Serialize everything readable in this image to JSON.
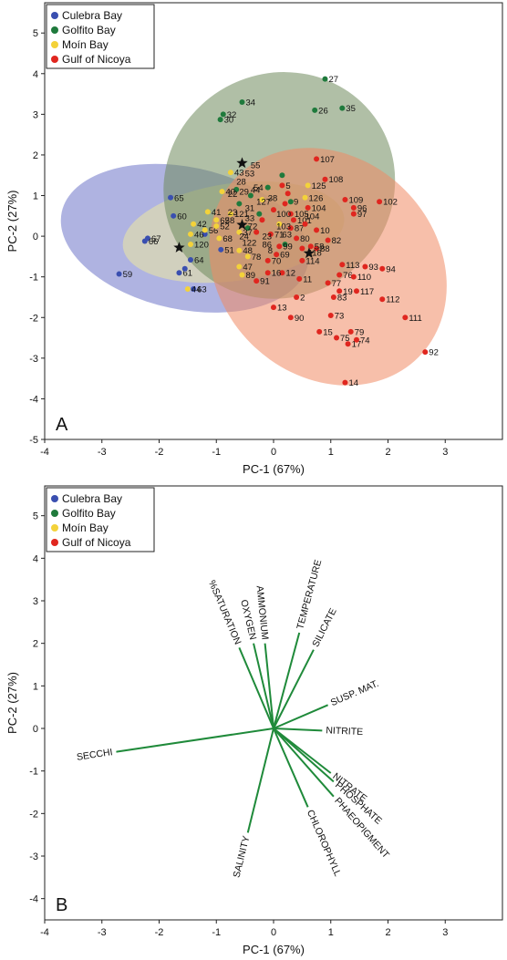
{
  "colors": {
    "culebra": "#3a4fb0",
    "golfito": "#1f7a3c",
    "moin": "#f3d23a",
    "nicoya": "#e0261f",
    "ellipse_culebra": "#6d74c9",
    "ellipse_golfito": "#6f8a5c",
    "ellipse_moin": "#ece7a3",
    "ellipse_nicoya": "#f08a64",
    "vector": "#1f8a3a"
  },
  "legend": [
    {
      "key": "culebra",
      "label": "Culebra Bay"
    },
    {
      "key": "golfito",
      "label": "Golfito Bay"
    },
    {
      "key": "moin",
      "label": "Moín Bay"
    },
    {
      "key": "nicoya",
      "label": "Gulf of Nicoya"
    }
  ],
  "chart_data": [
    {
      "type": "scatter",
      "panel": "A",
      "xlabel": "PC-1 (67%)",
      "ylabel": "PC-2 (27%)",
      "xlim": [
        -4,
        4
      ],
      "ylim": [
        -5,
        5.7
      ],
      "xticks": [
        -4,
        -3,
        -2,
        -1,
        0,
        1,
        2,
        3
      ],
      "yticks": [
        -5,
        -4,
        -3,
        -2,
        -1,
        0,
        1,
        2,
        3,
        4,
        5
      ],
      "ellipses": [
        {
          "key": "culebra",
          "cx": -1.55,
          "cy": -0.05,
          "rx": 2.2,
          "ry": 1.75,
          "angle": -12
        },
        {
          "key": "moin",
          "cx": -0.7,
          "cy": 0.1,
          "rx": 1.95,
          "ry": 1.2,
          "angle": 8
        },
        {
          "key": "golfito",
          "cx": 0.1,
          "cy": 1.25,
          "rx": 2.05,
          "ry": 2.75,
          "angle": 32
        },
        {
          "key": "nicoya",
          "cx": 0.95,
          "cy": -0.75,
          "rx": 1.9,
          "ry": 3.15,
          "angle": 45
        }
      ],
      "centroids": [
        {
          "x": -1.65,
          "y": -0.28
        },
        {
          "x": -0.55,
          "y": 1.8
        },
        {
          "x": -0.55,
          "y": 0.28
        },
        {
          "x": 0.62,
          "y": -0.42
        }
      ],
      "series": [
        {
          "key": "culebra",
          "name": "Culebra Bay",
          "points": [
            {
              "x": -1.8,
              "y": 0.95,
              "label": "65"
            },
            {
              "x": -2.2,
              "y": -0.05,
              "label": "67"
            },
            {
              "x": -2.25,
              "y": -0.12,
              "label": "66"
            },
            {
              "x": -1.75,
              "y": 0.5,
              "label": "60"
            },
            {
              "x": -2.7,
              "y": -0.93,
              "label": "59"
            },
            {
              "x": -1.65,
              "y": -0.9,
              "label": "61"
            },
            {
              "x": -1.45,
              "y": -0.58,
              "label": "64"
            },
            {
              "x": -1.55,
              "y": -0.8,
              "label": ""
            },
            {
              "x": -1.4,
              "y": -1.3,
              "label": "63"
            },
            {
              "x": -0.92,
              "y": -0.33,
              "label": "51"
            },
            {
              "x": -1.2,
              "y": 0.05,
              "label": ""
            }
          ]
        },
        {
          "key": "golfito",
          "name": "Golfito Bay",
          "points": [
            {
              "x": -0.55,
              "y": 3.3,
              "label": "34"
            },
            {
              "x": -0.88,
              "y": 3.0,
              "label": "32"
            },
            {
              "x": -0.93,
              "y": 2.87,
              "label": "30"
            },
            {
              "x": 0.9,
              "y": 3.87,
              "label": "27"
            },
            {
              "x": 1.2,
              "y": 3.15,
              "label": "35"
            },
            {
              "x": 0.72,
              "y": 3.1,
              "label": "26"
            },
            {
              "x": -0.65,
              "y": 1.15,
              "label": ""
            },
            {
              "x": -0.4,
              "y": 1.0,
              "label": ""
            },
            {
              "x": 0.15,
              "y": 1.5,
              "label": ""
            },
            {
              "x": -0.25,
              "y": 0.55,
              "label": ""
            },
            {
              "x": -0.45,
              "y": 0.2,
              "label": ""
            },
            {
              "x": 0.3,
              "y": 0.85,
              "label": ""
            },
            {
              "x": -0.1,
              "y": 1.2,
              "label": ""
            },
            {
              "x": -0.6,
              "y": 0.8,
              "label": ""
            },
            {
              "x": 0.2,
              "y": -0.2,
              "label": ""
            }
          ]
        },
        {
          "key": "moin",
          "name": "Moín Bay",
          "points": [
            {
              "x": -1.15,
              "y": 0.6,
              "label": "41"
            },
            {
              "x": -1.4,
              "y": 0.3,
              "label": "42"
            },
            {
              "x": -1.45,
              "y": 0.05,
              "label": "46"
            },
            {
              "x": -1.2,
              "y": 0.15,
              "label": "56"
            },
            {
              "x": -1.45,
              "y": -0.2,
              "label": "120"
            },
            {
              "x": -1.5,
              "y": -1.3,
              "label": "44"
            },
            {
              "x": -0.9,
              "y": 1.1,
              "label": "40"
            },
            {
              "x": -0.75,
              "y": 1.57,
              "label": "43"
            },
            {
              "x": -1.0,
              "y": 0.25,
              "label": "52"
            },
            {
              "x": -1.0,
              "y": 0.4,
              "label": "62"
            },
            {
              "x": -0.6,
              "y": -0.35,
              "label": "48"
            },
            {
              "x": -0.6,
              "y": -0.75,
              "label": "47"
            },
            {
              "x": -0.55,
              "y": -0.95,
              "label": "89"
            },
            {
              "x": -0.95,
              "y": -0.05,
              "label": "68"
            },
            {
              "x": -0.75,
              "y": 0.55,
              "label": "121"
            },
            {
              "x": -0.6,
              "y": 0.1,
              "label": "37"
            },
            {
              "x": -0.45,
              "y": -0.5,
              "label": "78"
            },
            {
              "x": 0.55,
              "y": 0.95,
              "label": "126"
            },
            {
              "x": 0.6,
              "y": 1.25,
              "label": "125"
            },
            {
              "x": -0.2,
              "y": 0.9,
              "label": ""
            },
            {
              "x": 0.1,
              "y": 0.3,
              "label": ""
            }
          ]
        },
        {
          "key": "nicoya",
          "name": "Gulf of Nicoya",
          "points": [
            {
              "x": 0.75,
              "y": 1.9,
              "label": "107"
            },
            {
              "x": 0.9,
              "y": 1.4,
              "label": "108"
            },
            {
              "x": 1.25,
              "y": 0.9,
              "label": "109"
            },
            {
              "x": 1.85,
              "y": 0.85,
              "label": "102"
            },
            {
              "x": 1.4,
              "y": 0.7,
              "label": "96"
            },
            {
              "x": 1.4,
              "y": 0.55,
              "label": "97"
            },
            {
              "x": 0.6,
              "y": 0.7,
              "label": "104"
            },
            {
              "x": 0.3,
              "y": 0.55,
              "label": "105"
            },
            {
              "x": 0.15,
              "y": 1.25,
              "label": "5"
            },
            {
              "x": 0.3,
              "y": 0.2,
              "label": "87"
            },
            {
              "x": 0.75,
              "y": 0.15,
              "label": "10"
            },
            {
              "x": 0.95,
              "y": -0.1,
              "label": "82"
            },
            {
              "x": 0.75,
              "y": -0.3,
              "label": "88"
            },
            {
              "x": 0.65,
              "y": -0.25,
              "label": "58"
            },
            {
              "x": 1.15,
              "y": -0.95,
              "label": "76"
            },
            {
              "x": 1.2,
              "y": -0.7,
              "label": "113"
            },
            {
              "x": 1.6,
              "y": -0.75,
              "label": "93"
            },
            {
              "x": 1.9,
              "y": -0.8,
              "label": "94"
            },
            {
              "x": 1.4,
              "y": -1.0,
              "label": "110"
            },
            {
              "x": 1.15,
              "y": -1.35,
              "label": "19"
            },
            {
              "x": 1.45,
              "y": -1.35,
              "label": "117"
            },
            {
              "x": 1.9,
              "y": -1.55,
              "label": "112"
            },
            {
              "x": 0.95,
              "y": -1.15,
              "label": "77"
            },
            {
              "x": 1.05,
              "y": -1.5,
              "label": "83"
            },
            {
              "x": 1.0,
              "y": -1.95,
              "label": "73"
            },
            {
              "x": 0.8,
              "y": -2.35,
              "label": "15"
            },
            {
              "x": 1.1,
              "y": -2.5,
              "label": "75"
            },
            {
              "x": 1.3,
              "y": -2.65,
              "label": "17"
            },
            {
              "x": 1.35,
              "y": -2.35,
              "label": "79"
            },
            {
              "x": 1.45,
              "y": -2.55,
              "label": "74"
            },
            {
              "x": 2.3,
              "y": -2.0,
              "label": "111"
            },
            {
              "x": 2.65,
              "y": -2.85,
              "label": "92"
            },
            {
              "x": 1.25,
              "y": -3.6,
              "label": "14"
            },
            {
              "x": 0.4,
              "y": -1.5,
              "label": "2"
            },
            {
              "x": 0.3,
              "y": -2.0,
              "label": "90"
            },
            {
              "x": 0.0,
              "y": -1.75,
              "label": "13"
            },
            {
              "x": 0.45,
              "y": -1.05,
              "label": "11"
            },
            {
              "x": 0.5,
              "y": -0.6,
              "label": "114"
            },
            {
              "x": 0.15,
              "y": -0.9,
              "label": "12"
            },
            {
              "x": -0.1,
              "y": -0.9,
              "label": "16"
            },
            {
              "x": 0.05,
              "y": -0.45,
              "label": "69"
            },
            {
              "x": -0.1,
              "y": -0.6,
              "label": "70"
            },
            {
              "x": 0.1,
              "y": -0.25,
              "label": "99"
            },
            {
              "x": -0.05,
              "y": 0.05,
              "label": "71"
            },
            {
              "x": 0.4,
              "y": -0.05,
              "label": "80"
            },
            {
              "x": 0.5,
              "y": -0.3,
              "label": ""
            },
            {
              "x": 0.35,
              "y": 0.4,
              "label": "101"
            },
            {
              "x": 0.55,
              "y": 0.3,
              "label": ""
            },
            {
              "x": 0.2,
              "y": 0.8,
              "label": ""
            },
            {
              "x": 0.25,
              "y": 1.05,
              "label": ""
            },
            {
              "x": -0.3,
              "y": -1.1,
              "label": "91"
            },
            {
              "x": -0.3,
              "y": 0.1,
              "label": ""
            },
            {
              "x": -0.2,
              "y": 0.4,
              "label": ""
            },
            {
              "x": 0.0,
              "y": 0.65,
              "label": ""
            }
          ]
        }
      ],
      "extra_labels": [
        {
          "x": -0.5,
          "y": 1.55,
          "text": "53"
        },
        {
          "x": -0.4,
          "y": 1.75,
          "text": "55"
        },
        {
          "x": -0.65,
          "y": 1.35,
          "text": "28"
        },
        {
          "x": -0.6,
          "y": 1.1,
          "text": "29"
        },
        {
          "x": -0.4,
          "y": 1.15,
          "text": "44"
        },
        {
          "x": -0.35,
          "y": 1.2,
          "text": "54"
        },
        {
          "x": -0.8,
          "y": 1.05,
          "text": "22"
        },
        {
          "x": -0.1,
          "y": 0.95,
          "text": "38"
        },
        {
          "x": -0.3,
          "y": 0.85,
          "text": "127"
        },
        {
          "x": -0.5,
          "y": 0.7,
          "text": "31"
        },
        {
          "x": -0.8,
          "y": 0.6,
          "text": "23"
        },
        {
          "x": -0.85,
          "y": 0.4,
          "text": "58"
        },
        {
          "x": -0.5,
          "y": 0.45,
          "text": "33"
        },
        {
          "x": -0.45,
          "y": 0.25,
          "text": "72"
        },
        {
          "x": -0.6,
          "y": 0.0,
          "text": "24"
        },
        {
          "x": -0.2,
          "y": 0.0,
          "text": "23"
        },
        {
          "x": -0.55,
          "y": -0.15,
          "text": "122"
        },
        {
          "x": -0.2,
          "y": -0.2,
          "text": "86"
        },
        {
          "x": -0.1,
          "y": -0.35,
          "text": "8"
        },
        {
          "x": 0.05,
          "y": 0.25,
          "text": "103"
        },
        {
          "x": 0.15,
          "y": 0.05,
          "text": "63"
        },
        {
          "x": 0.35,
          "y": 0.85,
          "text": "9"
        },
        {
          "x": 0.55,
          "y": 0.5,
          "text": "104"
        },
        {
          "x": 0.6,
          "y": -0.4,
          "text": "118"
        },
        {
          "x": 0.05,
          "y": 0.55,
          "text": "100"
        }
      ]
    },
    {
      "type": "scatter",
      "panel": "B",
      "xlabel": "PC-1 (67%)",
      "ylabel": "PC-2 (27%)",
      "xlim": [
        -4,
        4
      ],
      "ylim": [
        -4.5,
        5.7
      ],
      "xticks": [
        -4,
        -3,
        -2,
        -1,
        0,
        1,
        2,
        3
      ],
      "yticks": [
        -4,
        -3,
        -2,
        -1,
        0,
        1,
        2,
        3,
        4,
        5
      ],
      "vectors": [
        {
          "label": "SECCHI",
          "x": -2.75,
          "y": -0.55
        },
        {
          "label": "SALINITY",
          "x": -0.45,
          "y": -2.45
        },
        {
          "label": "%SATURATION",
          "x": -0.6,
          "y": 1.9
        },
        {
          "label": "OXYGEN",
          "x": -0.35,
          "y": 2.0
        },
        {
          "label": "AMMONIUM",
          "x": -0.15,
          "y": 2.0
        },
        {
          "label": "TEMPERATURE",
          "x": 0.45,
          "y": 2.25
        },
        {
          "label": "SILICATE",
          "x": 0.7,
          "y": 1.85
        },
        {
          "label": "SUSP. MAT.",
          "x": 0.95,
          "y": 0.55
        },
        {
          "label": "NITRITE",
          "x": 0.85,
          "y": -0.05
        },
        {
          "label": "NITRATE",
          "x": 1.0,
          "y": -1.05
        },
        {
          "label": "PHOSPHATE",
          "x": 1.05,
          "y": -1.25
        },
        {
          "label": "PHAEOPIGMENT",
          "x": 1.05,
          "y": -1.6
        },
        {
          "label": "CHLOROPHYLL",
          "x": 0.6,
          "y": -1.85
        }
      ]
    }
  ],
  "panel_a_letter": "A",
  "panel_b_letter": "B"
}
